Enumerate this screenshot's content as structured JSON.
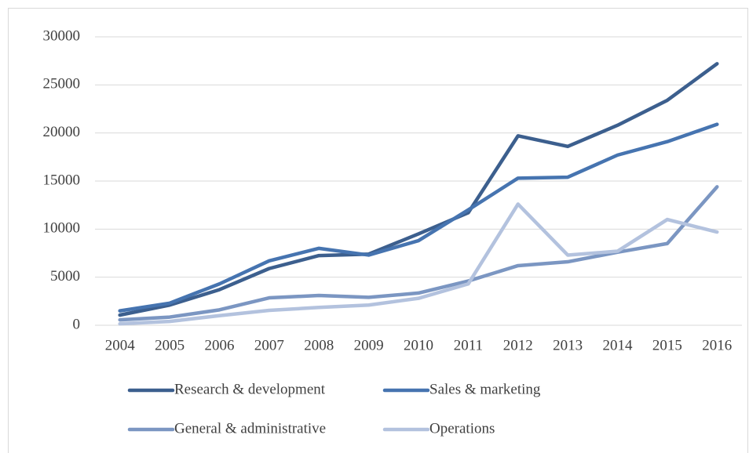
{
  "chart_data": {
    "type": "line",
    "categories": [
      "2004",
      "2005",
      "2006",
      "2007",
      "2008",
      "2009",
      "2010",
      "2011",
      "2012",
      "2013",
      "2014",
      "2015",
      "2016"
    ],
    "series": [
      {
        "name": "Research & development",
        "color": "#3c5f8e",
        "values": [
          1060,
          2100,
          3700,
          5900,
          7250,
          7400,
          9500,
          11700,
          19700,
          18600,
          20800,
          23400,
          27200
        ]
      },
      {
        "name": "Sales & marketing",
        "color": "#4674b0",
        "values": [
          1500,
          2300,
          4300,
          6700,
          8000,
          7300,
          8800,
          12000,
          15300,
          15400,
          17700,
          19100,
          20900
        ]
      },
      {
        "name": "General & administrative",
        "color": "#7b96c2",
        "values": [
          560,
          850,
          1600,
          2850,
          3100,
          2900,
          3350,
          4600,
          6200,
          6600,
          7600,
          8500,
          14400
        ]
      },
      {
        "name": "Operations",
        "color": "#b3c2de",
        "values": [
          150,
          400,
          1000,
          1550,
          1850,
          2100,
          2800,
          4300,
          12600,
          7300,
          7700,
          11000,
          9700
        ]
      }
    ],
    "ylim": [
      0,
      30000
    ],
    "yticks": [
      0,
      5000,
      10000,
      15000,
      20000,
      25000,
      30000
    ],
    "grid": true,
    "legend": "bottom"
  }
}
